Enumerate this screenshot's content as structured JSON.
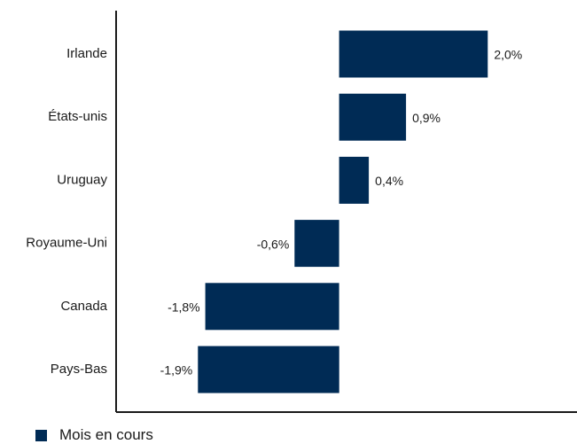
{
  "chart_data": {
    "type": "bar",
    "orientation": "horizontal",
    "categories": [
      "Irlande",
      "États-unis",
      "Uruguay",
      "Royaume-Uni",
      "Canada",
      "Pays-Bas"
    ],
    "series": [
      {
        "name": "Mois en cours",
        "values": [
          2.0,
          0.9,
          0.4,
          -0.6,
          -1.8,
          -1.9
        ],
        "value_labels": [
          "2,0%",
          "0,9%",
          "0,4%",
          "-0,6%",
          "-1,8%",
          "-1,9%"
        ],
        "color": "#002B55"
      }
    ],
    "title": "",
    "xlabel": "",
    "ylabel": "",
    "xlim": [
      -3.0,
      3.2
    ],
    "grid": false,
    "legend_position": "bottom-left"
  }
}
